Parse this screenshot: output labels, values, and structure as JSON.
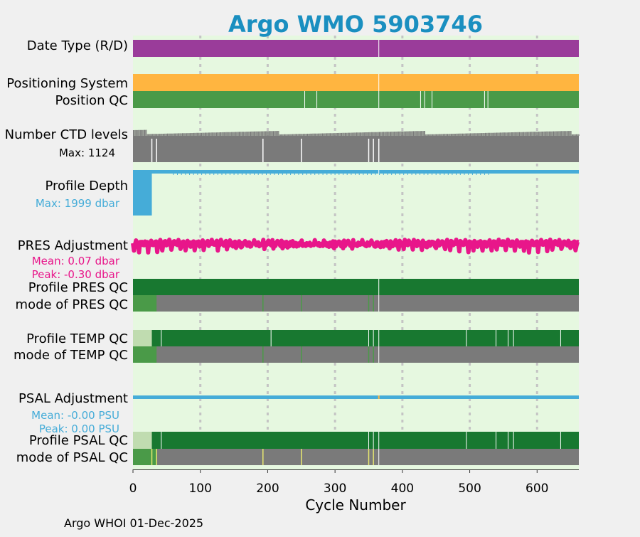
{
  "title": "Argo WMO 5903746",
  "footer": "Argo WHOI 01-Dec-2025",
  "colors": {
    "title": "#1a8fc0",
    "background": "#f0f0f0",
    "plot_bg": "#e6f8e0",
    "date_type": "#9a3c9a",
    "positioning": "#ffb540",
    "qc_good": "#4a9a48",
    "qc_dark": "#187830",
    "qc_light": "#c0dcb0",
    "ctd": "#7a7a7a",
    "depth": "#45acd8",
    "pres": "#e8168a",
    "psal": "#45acd8",
    "grid": "#c4c4c4",
    "gap": "#ffffff",
    "flag_yellow": "#e8e870"
  },
  "rows": {
    "date_type": {
      "label": "Date Type (R/D)"
    },
    "positioning_system": {
      "label": "Positioning System"
    },
    "position_qc": {
      "label": "Position QC"
    },
    "ctd_levels": {
      "label": "Number CTD levels",
      "sub": "Max: 1124"
    },
    "profile_depth": {
      "label": "Profile Depth",
      "sub": "Max: 1999 dbar"
    },
    "pres_adjustment": {
      "label": "PRES Adjustment",
      "sub1": "Mean: 0.07 dbar",
      "sub2": "Peak: -0.30 dbar"
    },
    "profile_pres_qc": {
      "label": "Profile PRES QC"
    },
    "mode_pres_qc": {
      "label": "mode of PRES QC"
    },
    "profile_temp_qc": {
      "label": "Profile TEMP QC"
    },
    "mode_temp_qc": {
      "label": "mode of TEMP QC"
    },
    "psal_adjustment": {
      "label": "PSAL Adjustment",
      "sub1": "Mean: -0.00 PSU",
      "sub2": "Peak: 0.00 PSU"
    },
    "profile_psal_qc": {
      "label": "Profile PSAL QC"
    },
    "mode_psal_qc": {
      "label": "mode of PSAL QC"
    }
  },
  "chart_data": {
    "type": "timeline",
    "xlabel": "Cycle Number",
    "xlim": [
      0,
      662
    ],
    "xticks": [
      0,
      100,
      200,
      300,
      400,
      500,
      600
    ],
    "grid": true,
    "ctd_levels_max": 1124,
    "profile_depth_max_dbar": 1999,
    "profile_depth_full_until_cycle": 28,
    "pres_adjustment_mean_dbar": 0.07,
    "pres_adjustment_peak_dbar": -0.3,
    "psal_adjustment_mean_psu": -0.0,
    "psal_adjustment_peak_psu": 0.0,
    "gap_cycles": [
      365
    ],
    "position_qc_gaps": [
      255,
      273,
      427,
      433,
      444,
      522,
      527
    ],
    "ctd_dips": [
      28,
      35,
      193,
      250,
      350,
      357,
      365
    ],
    "profile_temp_qc_light_until": 28,
    "profile_temp_qc_gaps": [
      42,
      205,
      350,
      357,
      495,
      539,
      557,
      565,
      635
    ],
    "profile_psal_qc_light_until": 28,
    "profile_psal_qc_gaps": [
      42,
      350,
      357,
      495,
      539,
      557,
      565,
      635
    ],
    "mode_qc_good_until": 35,
    "mode_qc_marks": [
      15,
      20,
      193,
      250,
      350,
      357
    ],
    "mode_psal_yellow_marks": [
      28,
      35,
      193,
      250,
      350,
      357
    ]
  }
}
